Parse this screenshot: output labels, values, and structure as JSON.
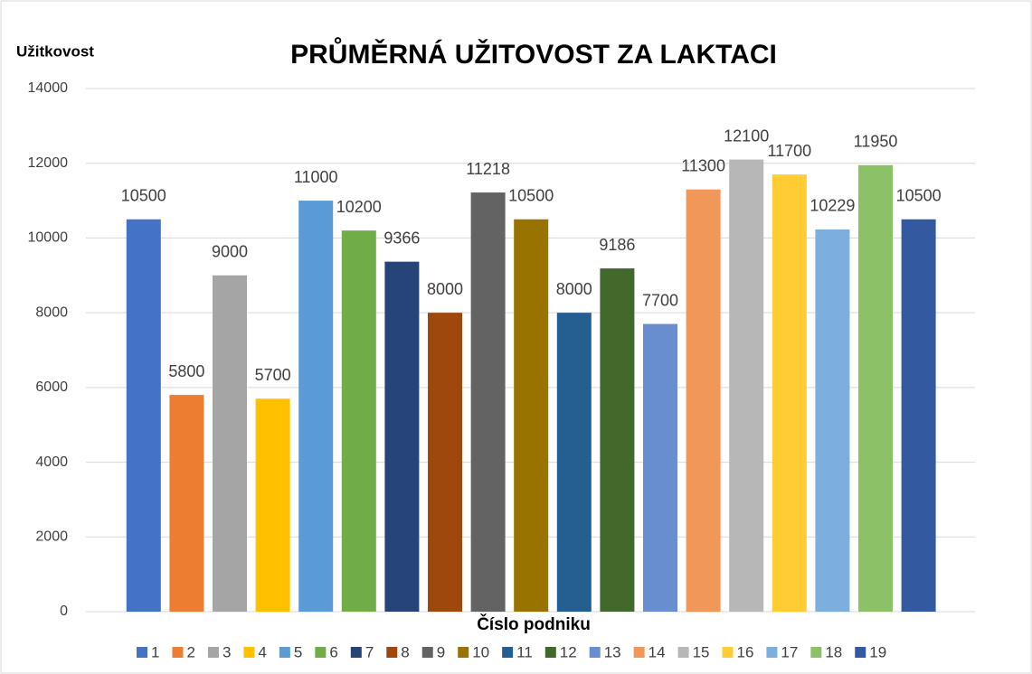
{
  "chart_data": {
    "type": "bar",
    "title": "PRŮMĚRNÁ UŽITOVOST ZA LAKTACI",
    "y_label": "Užitkovost",
    "x_label": "Číslo podniku",
    "categories": [
      null
    ],
    "ylim": [
      0,
      14000
    ],
    "yticks": [
      0,
      2000,
      4000,
      6000,
      8000,
      10000,
      12000,
      14000
    ],
    "grid": true,
    "legend": "bottom",
    "series": [
      {
        "name": "1",
        "color": "#4472c4",
        "values": [
          10500
        ]
      },
      {
        "name": "2",
        "color": "#ed7d31",
        "values": [
          5800
        ]
      },
      {
        "name": "3",
        "color": "#a5a5a5",
        "values": [
          9000
        ]
      },
      {
        "name": "4",
        "color": "#ffc000",
        "values": [
          5700
        ]
      },
      {
        "name": "5",
        "color": "#5b9bd5",
        "values": [
          11000
        ]
      },
      {
        "name": "6",
        "color": "#70ad47",
        "values": [
          10200
        ]
      },
      {
        "name": "7",
        "color": "#264478",
        "values": [
          9366
        ]
      },
      {
        "name": "8",
        "color": "#9e480e",
        "values": [
          8000
        ]
      },
      {
        "name": "9",
        "color": "#636363",
        "values": [
          11218
        ]
      },
      {
        "name": "10",
        "color": "#997300",
        "values": [
          10500
        ]
      },
      {
        "name": "11",
        "color": "#255e91",
        "values": [
          8000
        ]
      },
      {
        "name": "12",
        "color": "#43682b",
        "values": [
          9186
        ]
      },
      {
        "name": "13",
        "color": "#698ed0",
        "values": [
          7700
        ]
      },
      {
        "name": "14",
        "color": "#f1975a",
        "values": [
          11300
        ]
      },
      {
        "name": "15",
        "color": "#b7b7b7",
        "values": [
          12100
        ]
      },
      {
        "name": "16",
        "color": "#ffcd33",
        "values": [
          11700
        ]
      },
      {
        "name": "17",
        "color": "#7cafdd",
        "values": [
          10229
        ]
      },
      {
        "name": "18",
        "color": "#8cc168",
        "values": [
          11950
        ]
      },
      {
        "name": "19",
        "color": "#335aa1",
        "values": [
          10500
        ]
      }
    ]
  }
}
